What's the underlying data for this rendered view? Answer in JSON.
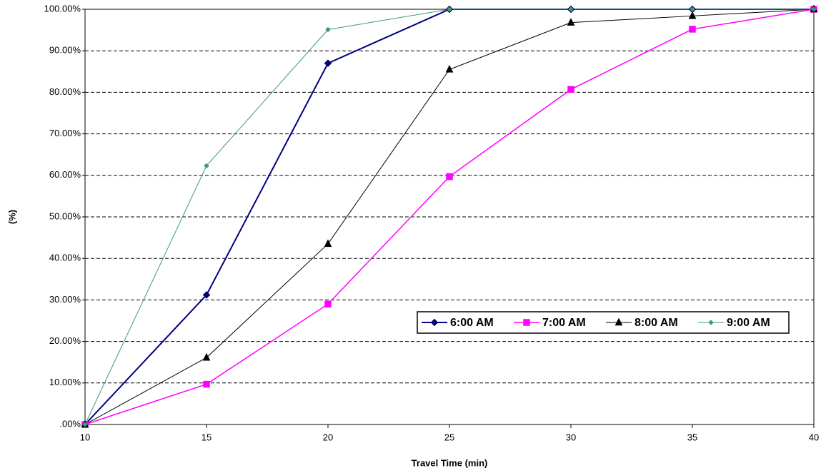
{
  "chart_data": {
    "type": "line",
    "x_label": "Travel Time (min)",
    "y_label": "(%)",
    "x": [
      10,
      15,
      20,
      25,
      30,
      35,
      40
    ],
    "xlim": [
      10,
      40
    ],
    "xticks": [
      10,
      15,
      20,
      25,
      30,
      35,
      40
    ],
    "ylim": [
      0,
      100
    ],
    "yticks": [
      {
        "value": 0,
        "label": ".00%"
      },
      {
        "value": 10,
        "label": "10.00%"
      },
      {
        "value": 20,
        "label": "20.00%"
      },
      {
        "value": 30,
        "label": "30.00%"
      },
      {
        "value": 40,
        "label": "40.00%"
      },
      {
        "value": 50,
        "label": "50.00%"
      },
      {
        "value": 60,
        "label": "60.00%"
      },
      {
        "value": 70,
        "label": "70.00%"
      },
      {
        "value": 80,
        "label": "80.00%"
      },
      {
        "value": 90,
        "label": "90.00%"
      },
      {
        "value": 100,
        "label": "100.00%"
      }
    ],
    "grid": true,
    "legend_position": "lower right",
    "series": [
      {
        "name": "6:00 AM",
        "color": "#000080",
        "marker": "diamond",
        "values": [
          0,
          31.2,
          87,
          100,
          100,
          100,
          100
        ]
      },
      {
        "name": "7:00 AM",
        "color": "#ff00ff",
        "marker": "square",
        "values": [
          0,
          9.7,
          29,
          59.7,
          80.7,
          95.2,
          100
        ]
      },
      {
        "name": "8:00 AM",
        "color": "#000000",
        "marker": "triangle",
        "values": [
          0,
          16.1,
          43.5,
          85.5,
          96.8,
          98.4,
          100
        ]
      },
      {
        "name": "9:00 AM",
        "color": "#3c9a78",
        "marker": "small-diamond",
        "values": [
          0,
          62.3,
          95.1,
          100,
          100,
          100,
          100
        ]
      }
    ]
  }
}
